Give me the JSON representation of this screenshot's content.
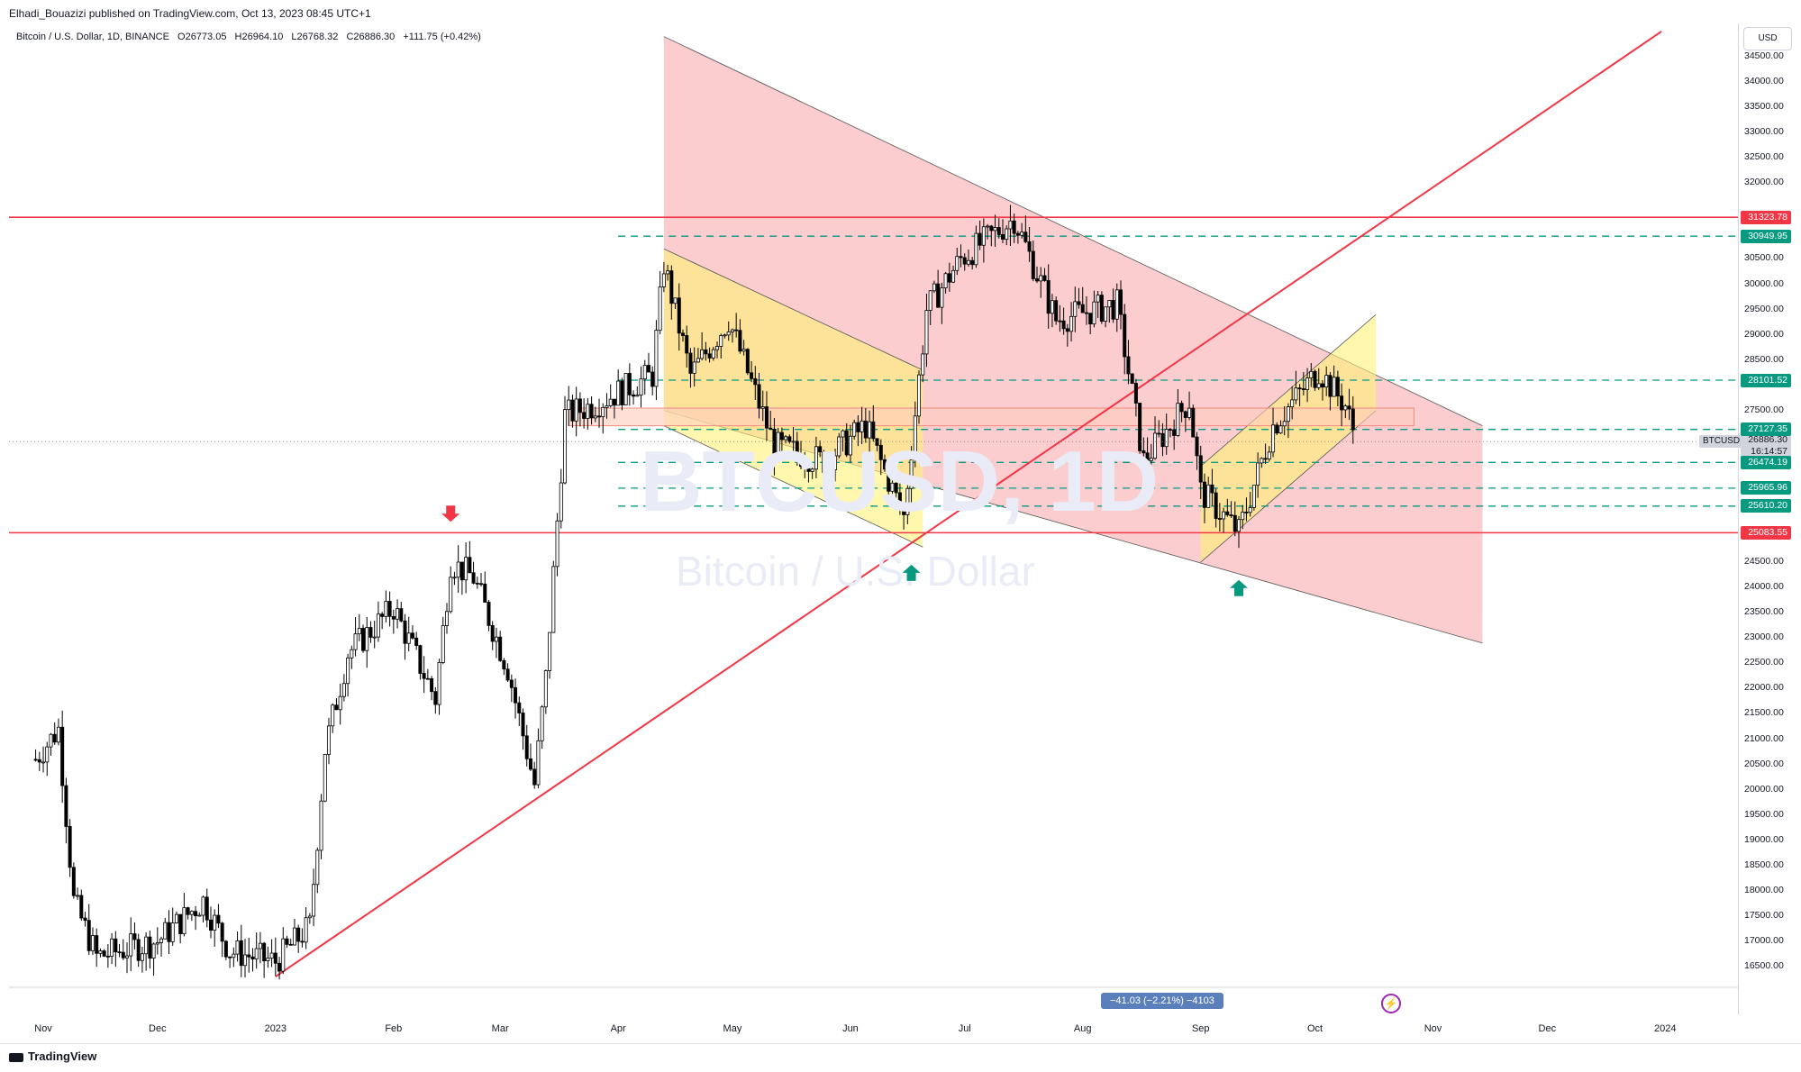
{
  "publisher": "Elhadi_Bouazizi published on TradingView.com, Oct 13, 2023 08:45 UTC+1",
  "legend": {
    "symbol": "Bitcoin / U.S. Dollar, 1D, BINANCE",
    "open": "O26773.05",
    "high": "H26964.10",
    "low": "L26768.32",
    "close": "C26886.30",
    "change": "+111.75 (+0.42%)"
  },
  "watermark": {
    "ticker": "BTCUSD, 1D",
    "name": "Bitcoin / U.S. Dollar"
  },
  "currency": "USD",
  "measure_label": "−41.03 (−2.21%) −4103",
  "footer": {
    "brand": "TradingView"
  },
  "colors": {
    "up": "#ffffff",
    "down": "#000000",
    "resistance": "#f23645",
    "dashed": "#089981",
    "channel_red": "#f7a4a8",
    "channel_yellow": "#fff176",
    "arrow_red": "#f23645",
    "arrow_green": "#089981"
  },
  "chart_data": {
    "type": "candlestick",
    "symbol": "BTCUSD",
    "timeframe": "1D",
    "ylim": [
      16000,
      35000
    ],
    "x_labels": [
      "Nov",
      "Dec",
      "2023",
      "Feb",
      "Mar",
      "Apr",
      "May",
      "Jun",
      "Jul",
      "Aug",
      "Sep",
      "Oct",
      "Nov",
      "Dec",
      "2024"
    ],
    "y_ticks": [
      16500,
      17000,
      17500,
      18000,
      18500,
      19000,
      19500,
      20000,
      20500,
      21000,
      21500,
      22000,
      22500,
      23000,
      23500,
      24000,
      24500,
      25000,
      25500,
      26000,
      26500,
      27000,
      27500,
      28000,
      28500,
      29000,
      29500,
      30000,
      30500,
      31000,
      31500,
      32000,
      32500,
      33000,
      33500,
      34000,
      34500
    ],
    "price_path": [
      [
        "2022-10-30",
        20600
      ],
      [
        "2022-11-05",
        21200
      ],
      [
        "2022-11-09",
        17800
      ],
      [
        "2022-11-15",
        16700
      ],
      [
        "2022-12-01",
        17000
      ],
      [
        "2022-12-13",
        17800
      ],
      [
        "2022-12-20",
        16800
      ],
      [
        "2023-01-01",
        16600
      ],
      [
        "2023-01-10",
        17300
      ],
      [
        "2023-01-14",
        20800
      ],
      [
        "2023-01-20",
        22700
      ],
      [
        "2023-02-01",
        23600
      ],
      [
        "2023-02-12",
        21800
      ],
      [
        "2023-02-16",
        24500
      ],
      [
        "2023-02-22",
        24200
      ],
      [
        "2023-03-03",
        22400
      ],
      [
        "2023-03-10",
        20100
      ],
      [
        "2023-03-13",
        22200
      ],
      [
        "2023-03-18",
        27400
      ],
      [
        "2023-03-25",
        27600
      ],
      [
        "2023-04-10",
        28200
      ],
      [
        "2023-04-13",
        30400
      ],
      [
        "2023-04-20",
        28200
      ],
      [
        "2023-04-30",
        29300
      ],
      [
        "2023-05-12",
        26800
      ],
      [
        "2023-05-25",
        26500
      ],
      [
        "2023-06-05",
        27200
      ],
      [
        "2023-06-15",
        25400
      ],
      [
        "2023-06-21",
        29500
      ],
      [
        "2023-06-30",
        30500
      ],
      [
        "2023-07-14",
        31300
      ],
      [
        "2023-07-25",
        29300
      ],
      [
        "2023-08-10",
        29600
      ],
      [
        "2023-08-17",
        26500
      ],
      [
        "2023-08-29",
        27700
      ],
      [
        "2023-09-01",
        25900
      ],
      [
        "2023-09-11",
        25100
      ],
      [
        "2023-09-20",
        27200
      ],
      [
        "2023-10-02",
        28300
      ],
      [
        "2023-10-09",
        27600
      ],
      [
        "2023-10-12",
        26900
      ]
    ],
    "last_price": 26886.3,
    "countdown": "16:14:57",
    "horizontal_levels": [
      {
        "price": 31323.78,
        "label": "31323.78",
        "style": "solid",
        "color": "#f23645"
      },
      {
        "price": 30949.95,
        "label": "30949.95",
        "style": "dashed",
        "color": "#089981"
      },
      {
        "price": 28101.52,
        "label": "28101.52",
        "style": "dashed",
        "color": "#089981"
      },
      {
        "price": 27127.35,
        "label": "27127.35",
        "style": "dashed",
        "color": "#089981"
      },
      {
        "price": 26474.19,
        "label": "26474.19",
        "style": "dashed",
        "color": "#089981"
      },
      {
        "price": 25965.96,
        "label": "25965.96",
        "style": "dashed",
        "color": "#089981"
      },
      {
        "price": 25610.2,
        "label": "25610.20",
        "style": "dashed",
        "color": "#089981"
      },
      {
        "price": 25083.55,
        "label": "25083.55",
        "style": "solid",
        "color": "#f23645"
      }
    ],
    "trendline": {
      "from": [
        "2023-01-01",
        16300
      ],
      "to": [
        "2023-12-31",
        35000
      ]
    },
    "channels": [
      {
        "kind": "descending",
        "color": "#f7a4a8",
        "upper": [
          [
            "2023-04-13",
            34900
          ],
          [
            "2023-11-14",
            27200
          ]
        ],
        "lower": [
          [
            "2023-04-13",
            27500
          ],
          [
            "2023-11-14",
            22900
          ]
        ]
      },
      {
        "kind": "descending",
        "color": "#fff176",
        "upper": [
          [
            "2023-04-13",
            30700
          ],
          [
            "2023-06-20",
            28300
          ]
        ],
        "lower": [
          [
            "2023-04-13",
            27200
          ],
          [
            "2023-06-20",
            24800
          ]
        ]
      },
      {
        "kind": "ascending",
        "color": "#fff176",
        "upper": [
          [
            "2023-09-01",
            26400
          ],
          [
            "2023-10-17",
            29400
          ]
        ],
        "lower": [
          [
            "2023-09-01",
            24500
          ],
          [
            "2023-10-17",
            27500
          ]
        ]
      }
    ],
    "zone": {
      "from": "2023-03-19",
      "to": "2023-10-27",
      "top": 27550,
      "bottom": 27200
    },
    "arrows": [
      {
        "date": "2023-02-16",
        "price": 25300,
        "direction": "down",
        "color": "#f23645"
      },
      {
        "date": "2023-06-17",
        "price": 24450,
        "direction": "up",
        "color": "#089981"
      },
      {
        "date": "2023-09-11",
        "price": 24150,
        "direction": "up",
        "color": "#089981"
      }
    ]
  }
}
